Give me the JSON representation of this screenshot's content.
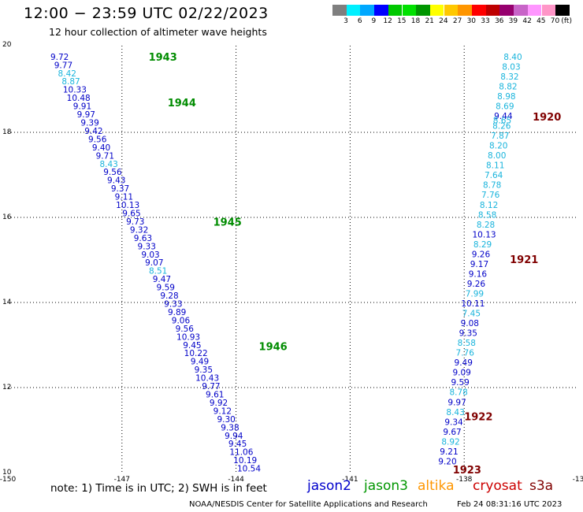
{
  "title": "12:00 − 23:59 UTC 02/22/2023",
  "subtitle": "12 hour collection of altimeter wave heights",
  "colorbar": {
    "unit_label": "(ft)",
    "labels": [
      "3",
      "6",
      "9",
      "12",
      "15",
      "18",
      "21",
      "24",
      "27",
      "30",
      "33",
      "36",
      "39",
      "42",
      "45",
      "70"
    ],
    "colors": [
      "#7f7f7f",
      "#00f0ff",
      "#00a8ff",
      "#0000ff",
      "#00c800",
      "#00e100",
      "#009600",
      "#ffff00",
      "#ffc800",
      "#ff9600",
      "#ff0000",
      "#be0000",
      "#96006e",
      "#c864c8",
      "#ff96ff",
      "#ff96c8",
      "#000000"
    ]
  },
  "axes": {
    "x_ticks": [
      "-150",
      "-147",
      "-144",
      "-141",
      "-138",
      "-13"
    ],
    "y_ticks": [
      "20",
      "18",
      "16",
      "14",
      "12",
      "10"
    ]
  },
  "chart_data": {
    "type": "scatter",
    "x_range": [
      -150,
      -135
    ],
    "y_range": [
      10,
      20
    ],
    "grid": true,
    "passes": [
      {
        "time": "1943",
        "satellite": "jason2",
        "label_lon": -146.3,
        "label_lat": 19.78
      },
      {
        "time": "1944",
        "satellite": "jason2",
        "label_lon": -145.8,
        "label_lat": 18.7
      },
      {
        "time": "1945",
        "satellite": "jason2",
        "label_lon": -144.6,
        "label_lat": 15.9
      },
      {
        "time": "1946",
        "satellite": "jason2",
        "label_lon": -143.4,
        "label_lat": 12.97
      },
      {
        "time": "1920",
        "satellite": "cryosat",
        "label_lon": -136.2,
        "label_lat": 18.37
      },
      {
        "time": "1921",
        "satellite": "cryosat",
        "label_lon": -136.8,
        "label_lat": 15.02
      },
      {
        "time": "1922",
        "satellite": "cryosat",
        "label_lon": -138.0,
        "label_lat": 11.32
      },
      {
        "time": "1923",
        "satellite": "cryosat",
        "label_lon": -138.3,
        "label_lat": 10.07
      }
    ],
    "tracks": [
      {
        "name": "west",
        "start_lon": -148.64,
        "end_lon": -143.66,
        "start_lat": 19.78,
        "end_lat": 10.1,
        "values": [
          "9.72",
          "9.77",
          "8.42",
          "8.87",
          "10.33",
          "10.48",
          "9.91",
          "9.97",
          "9.39",
          "9.42",
          "9.56",
          "9.40",
          "9.71",
          "8.43",
          "9.56",
          "9.43",
          "9.37",
          "9.11",
          "10.13",
          "9.65",
          "9.73",
          "9.32",
          "9.63",
          "9.33",
          "9.03",
          "9.07",
          "8.51",
          "9.47",
          "9.59",
          "9.28",
          "9.33",
          "9.89",
          "9.06",
          "9.56",
          "10.93",
          "9.45",
          "10.22",
          "9.49",
          "9.35",
          "10.43",
          "9.77",
          "9.61",
          "9.92",
          "9.12",
          "9.30",
          "9.38",
          "9.94",
          "9.45",
          "11.06",
          "10.19",
          "10.54"
        ],
        "sat": [
          "jason2",
          "jason2",
          "jason3",
          "jason3",
          "jason2",
          "jason2",
          "jason2",
          "jason2",
          "jason2",
          "jason2",
          "jason2",
          "jason2",
          "jason2",
          "jason3",
          "jason2",
          "jason2",
          "jason2",
          "jason2",
          "jason2",
          "jason2",
          "jason2",
          "jason2",
          "jason2",
          "jason2",
          "jason2",
          "jason2",
          "jason3",
          "jason2",
          "jason2",
          "jason2",
          "jason2",
          "jason2",
          "jason2",
          "jason2",
          "jason2",
          "jason2",
          "jason2",
          "jason2",
          "jason2",
          "jason2",
          "jason2",
          "jason2",
          "jason2",
          "jason2",
          "jason2",
          "jason2",
          "jason2",
          "jason2",
          "jason2",
          "jason2",
          "jason2"
        ]
      },
      {
        "name": "east",
        "start_lon": -136.72,
        "end_lon": -138.44,
        "start_lat": 19.78,
        "end_lat": 10.27,
        "values": [
          "8.40",
          "8.03",
          "8.32",
          "8.82",
          "8.98",
          "8.69",
          "9.44",
          "8.26",
          "7.87",
          "8.20",
          "8.00",
          "8.11",
          "7.64",
          "8.78",
          "7.76",
          "8.12",
          "8.58",
          "8.28",
          "10.13",
          "8.29",
          "9.26",
          "9.17",
          "9.16",
          "9.26",
          "7.99",
          "10.11",
          "7.45",
          "9.08",
          "9.35",
          "8.58",
          "7.76",
          "9.49",
          "9.09",
          "9.59",
          "8.78",
          "9.97",
          "8.43",
          "9.34",
          "9.67",
          "8.92",
          "9.21",
          "9.20"
        ],
        "sat": [
          "jason3",
          "jason3",
          "jason3",
          "jason3",
          "jason3",
          "jason3",
          "jason2",
          "jason3",
          "jason3",
          "jason3",
          "jason3",
          "jason3",
          "jason3",
          "jason3",
          "jason3",
          "jason3",
          "jason3",
          "jason3",
          "jason2",
          "jason3",
          "jason2",
          "jason2",
          "jason2",
          "jason2",
          "jason3",
          "jason2",
          "jason3",
          "jason2",
          "jason2",
          "jason3",
          "jason3",
          "jason2",
          "jason2",
          "jason2",
          "jason3",
          "jason2",
          "jason3",
          "jason2",
          "jason2",
          "jason3",
          "jason2",
          "jason2"
        ]
      }
    ],
    "extra_points": [
      {
        "value": "8.65",
        "sat": "jason3",
        "lon": -137.0,
        "lat": 18.29
      }
    ]
  },
  "footer": {
    "note": "note:  1) Time is in UTC;  2) SWH is in feet",
    "satellites": [
      {
        "name": "jason2",
        "color": "#0000cc"
      },
      {
        "name": "jason3",
        "color": "#009600"
      },
      {
        "name": "altika",
        "color": "#ff9600"
      },
      {
        "name": "cryosat",
        "color": "#cc0000"
      },
      {
        "name": "s3a",
        "color": "#800000"
      }
    ],
    "credit": "NOAA/NESDIS Center for Satellite Applications and Research",
    "timestamp": "Feb 24 08:31:16 UTC 2023"
  },
  "colors": {
    "jason2": "#0000c8",
    "jason3": "#19b4dc",
    "pass_label_jason2": "#008c00",
    "pass_label_cryosat": "#800000",
    "grid": "#000000"
  }
}
